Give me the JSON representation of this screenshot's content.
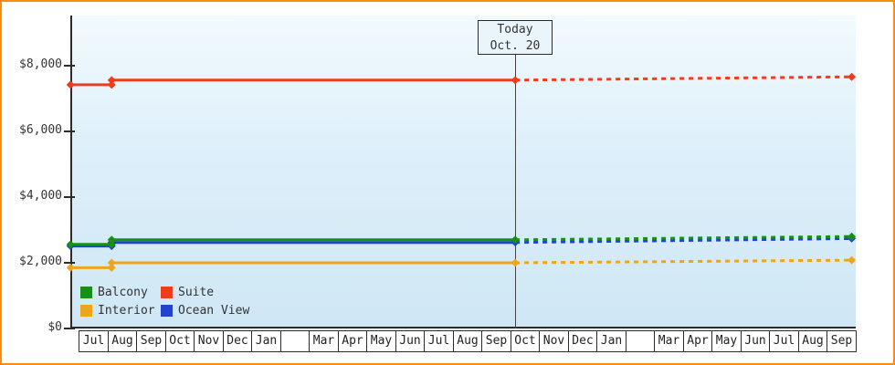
{
  "frame": {
    "border_color": "#ff8a10"
  },
  "chart_data": {
    "type": "line",
    "title": "",
    "xlabel": "",
    "ylabel": "",
    "legend_position": "bottom-left-inside",
    "grid": false,
    "x_unit": "month_index",
    "y_axis": {
      "max_visible_value": 9500,
      "ticks": [
        {
          "value": 0,
          "label": "$0"
        },
        {
          "value": 2000,
          "label": "$2,000"
        },
        {
          "value": 4000,
          "label": "$4,000"
        },
        {
          "value": 6000,
          "label": "$6,000"
        },
        {
          "value": 8000,
          "label": "$8,000"
        }
      ]
    },
    "x_categories": [
      "Jul",
      "Aug",
      "Sep",
      "Oct",
      "Nov",
      "Dec",
      "Jan",
      "",
      "Mar",
      "Apr",
      "May",
      "Jun",
      "Jul",
      "Aug",
      "Sep",
      "Oct",
      "Nov",
      "Dec",
      "Jan",
      "",
      "Mar",
      "Apr",
      "May",
      "Jun",
      "Jul",
      "Aug",
      "Sep"
    ],
    "today": {
      "line1": "Today",
      "line2": "Oct. 20",
      "x_index": 15.17
    },
    "series": [
      {
        "name": "Ocean View",
        "color": "#2143cd",
        "history": [
          [
            -0.28,
            2510
          ],
          [
            1.15,
            2510
          ],
          [
            1.15,
            2620
          ],
          [
            15.17,
            2620
          ]
        ],
        "forecast": [
          [
            15.17,
            2620
          ],
          [
            26.86,
            2740
          ]
        ],
        "markers": [
          [
            -0.28,
            2510
          ],
          [
            1.15,
            2510
          ],
          [
            1.15,
            2620
          ],
          [
            15.17,
            2620
          ],
          [
            26.86,
            2740
          ]
        ]
      },
      {
        "name": "Balcony",
        "color": "#169116",
        "history": [
          [
            -0.28,
            2560
          ],
          [
            1.15,
            2560
          ],
          [
            1.15,
            2700
          ],
          [
            15.17,
            2700
          ]
        ],
        "forecast": [
          [
            15.17,
            2700
          ],
          [
            26.86,
            2800
          ]
        ],
        "markers": [
          [
            -0.28,
            2560
          ],
          [
            1.15,
            2560
          ],
          [
            1.15,
            2700
          ],
          [
            15.17,
            2700
          ],
          [
            26.86,
            2800
          ]
        ]
      },
      {
        "name": "Interior",
        "color": "#efa41d",
        "history": [
          [
            -0.28,
            1850
          ],
          [
            1.15,
            1850
          ],
          [
            1.15,
            2000
          ],
          [
            15.17,
            2000
          ]
        ],
        "forecast": [
          [
            15.17,
            2000
          ],
          [
            26.86,
            2080
          ]
        ],
        "markers": [
          [
            -0.28,
            1850
          ],
          [
            1.15,
            1850
          ],
          [
            1.15,
            2000
          ],
          [
            15.17,
            2000
          ],
          [
            26.86,
            2080
          ]
        ]
      },
      {
        "name": "Suite",
        "color": "#ee3d1c",
        "history": [
          [
            -0.28,
            7420
          ],
          [
            1.15,
            7420
          ],
          [
            1.15,
            7560
          ],
          [
            15.17,
            7560
          ]
        ],
        "forecast": [
          [
            15.17,
            7560
          ],
          [
            26.86,
            7660
          ]
        ],
        "markers": [
          [
            -0.28,
            7420
          ],
          [
            1.15,
            7420
          ],
          [
            1.15,
            7560
          ],
          [
            15.17,
            7560
          ],
          [
            26.86,
            7660
          ]
        ]
      }
    ],
    "legend": [
      {
        "label": "Balcony",
        "color": "#169116"
      },
      {
        "label": "Suite",
        "color": "#ee3d1c"
      },
      {
        "label": "Interior",
        "color": "#efa41d"
      },
      {
        "label": "Ocean View",
        "color": "#2143cd"
      }
    ]
  }
}
